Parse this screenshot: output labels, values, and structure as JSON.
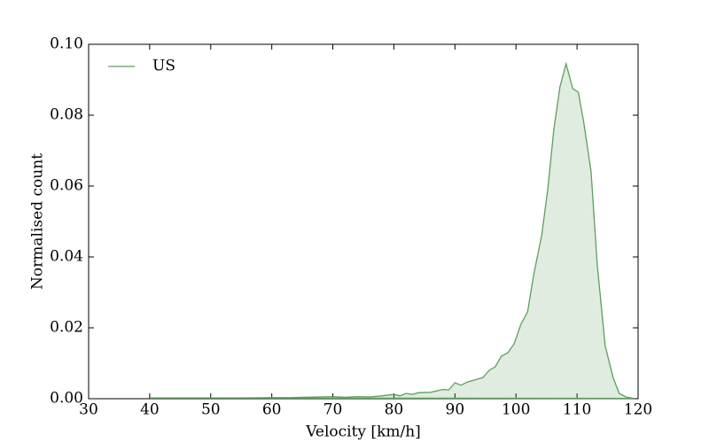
{
  "chart_data": {
    "type": "area",
    "xlabel": "Velocity [km/h]",
    "ylabel": "Normalised count",
    "x": [
      40,
      45,
      50,
      55,
      60,
      63,
      65,
      68,
      70,
      72,
      74,
      76,
      78,
      80,
      81,
      82,
      83,
      84,
      86,
      88,
      89,
      90,
      91,
      92,
      93,
      94.6,
      95.6,
      96.6,
      97.6,
      98.7,
      99.7,
      100.8,
      101.9,
      102.9,
      104.2,
      105.2,
      106.2,
      107.2,
      108.2,
      109.3,
      110.2,
      111.1,
      112.3,
      113.3,
      114.6,
      115.9,
      116.9,
      118,
      119.3
    ],
    "series": [
      {
        "name": "US",
        "color": "#5f9e5f",
        "values": [
          0.0002,
          0.0002,
          0.0002,
          0.0002,
          0.0003,
          0.0003,
          0.0004,
          0.0005,
          0.0006,
          0.0004,
          0.0006,
          0.0005,
          0.0008,
          0.0012,
          0.0008,
          0.0015,
          0.0012,
          0.0017,
          0.0018,
          0.0026,
          0.0025,
          0.0045,
          0.0038,
          0.0047,
          0.0052,
          0.006,
          0.008,
          0.009,
          0.012,
          0.013,
          0.0155,
          0.021,
          0.0245,
          0.035,
          0.046,
          0.059,
          0.076,
          0.088,
          0.0945,
          0.0875,
          0.0865,
          0.078,
          0.064,
          0.038,
          0.015,
          0.006,
          0.0015,
          0.0005,
          0.0001
        ]
      }
    ],
    "xlim": [
      30,
      120
    ],
    "xticks": [
      30,
      40,
      50,
      60,
      70,
      80,
      90,
      100,
      110,
      120
    ],
    "ylim": [
      0,
      0.1
    ],
    "yticks": [
      {
        "value": 0,
        "label": "0.00"
      },
      {
        "value": 0.02,
        "label": "0.02"
      },
      {
        "value": 0.04,
        "label": "0.04"
      },
      {
        "value": 0.06,
        "label": "0.06"
      },
      {
        "value": 0.08,
        "label": "0.08"
      },
      {
        "value": 0.1,
        "label": "0.10"
      }
    ],
    "legend": "upper left",
    "grid": false
  }
}
